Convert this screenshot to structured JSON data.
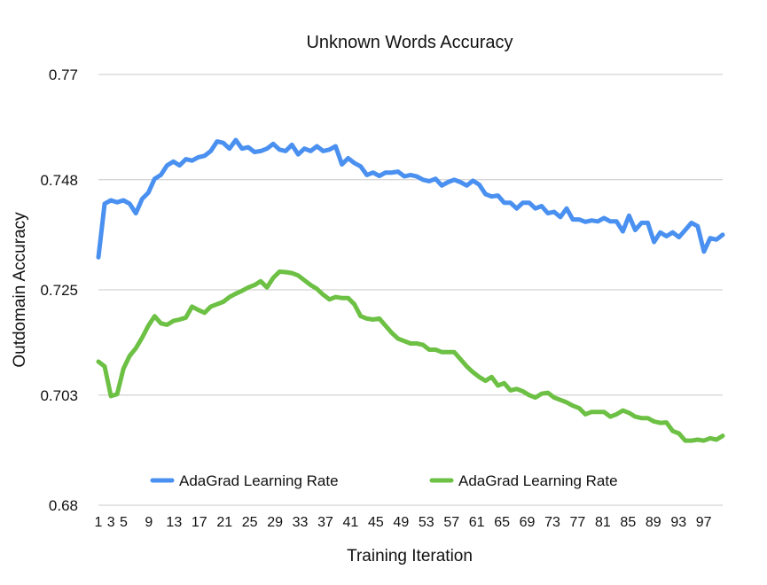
{
  "chart_data": {
    "type": "line",
    "title": "Unknown Words Accuracy",
    "xlabel": "Training Iteration",
    "ylabel": "Outdomain Accuracy",
    "yticks": [
      "0.68",
      "0.703",
      "0.725",
      "0.748",
      "0.77"
    ],
    "ylim": [
      0.68,
      0.77
    ],
    "xlim": [
      1,
      100
    ],
    "xticks": [
      "1",
      "3",
      "5",
      "9",
      "13",
      "17",
      "21",
      "25",
      "29",
      "33",
      "37",
      "41",
      "45",
      "49",
      "53",
      "57",
      "61",
      "65",
      "69",
      "73",
      "77",
      "81",
      "85",
      "89",
      "93",
      "97"
    ],
    "grid": true,
    "legend_position": "bottom",
    "series": [
      {
        "name": "AdaGrad Learning Rate",
        "color": "#4a90f0",
        "values": [
          0.7318,
          0.743,
          0.7437,
          0.7433,
          0.7437,
          0.743,
          0.741,
          0.744,
          0.7453,
          0.7482,
          0.749,
          0.751,
          0.7518,
          0.751,
          0.7523,
          0.752,
          0.7527,
          0.753,
          0.754,
          0.756,
          0.7557,
          0.7545,
          0.7563,
          0.7545,
          0.7548,
          0.7538,
          0.754,
          0.7545,
          0.7555,
          0.7543,
          0.754,
          0.7553,
          0.7533,
          0.7545,
          0.754,
          0.755,
          0.754,
          0.7543,
          0.755,
          0.7512,
          0.7525,
          0.7515,
          0.7508,
          0.749,
          0.7495,
          0.7488,
          0.7495,
          0.7495,
          0.7497,
          0.7487,
          0.749,
          0.7487,
          0.748,
          0.7477,
          0.7482,
          0.7468,
          0.7475,
          0.748,
          0.7475,
          0.7468,
          0.7478,
          0.747,
          0.745,
          0.7445,
          0.7447,
          0.7432,
          0.7432,
          0.742,
          0.7432,
          0.7432,
          0.742,
          0.7425,
          0.741,
          0.7413,
          0.7402,
          0.742,
          0.7397,
          0.7397,
          0.7392,
          0.7395,
          0.7393,
          0.74,
          0.7393,
          0.7393,
          0.7372,
          0.7405,
          0.7375,
          0.739,
          0.739,
          0.735,
          0.737,
          0.7362,
          0.737,
          0.736,
          0.7375,
          0.739,
          0.7383,
          0.733,
          0.7358,
          0.7355,
          0.7365
        ]
      },
      {
        "name": "AdaGrad Learning Rate",
        "color": "#6cc043",
        "values": [
          0.71,
          0.709,
          0.7028,
          0.7032,
          0.7085,
          0.7112,
          0.7128,
          0.715,
          0.7175,
          0.7195,
          0.718,
          0.7177,
          0.7185,
          0.7188,
          0.7192,
          0.7215,
          0.7208,
          0.7202,
          0.7215,
          0.722,
          0.7225,
          0.7235,
          0.7242,
          0.7248,
          0.7255,
          0.726,
          0.7268,
          0.7255,
          0.7275,
          0.7288,
          0.7287,
          0.7285,
          0.728,
          0.727,
          0.726,
          0.7252,
          0.724,
          0.723,
          0.7235,
          0.7233,
          0.7233,
          0.722,
          0.7195,
          0.719,
          0.7188,
          0.719,
          0.7175,
          0.716,
          0.7148,
          0.7143,
          0.7138,
          0.7138,
          0.7135,
          0.7125,
          0.7125,
          0.712,
          0.712,
          0.712,
          0.7105,
          0.709,
          0.7078,
          0.7068,
          0.706,
          0.7068,
          0.705,
          0.7055,
          0.704,
          0.7043,
          0.7038,
          0.703,
          0.7025,
          0.7033,
          0.7035,
          0.7025,
          0.702,
          0.7015,
          0.7008,
          0.7003,
          0.699,
          0.6995,
          0.6995,
          0.6995,
          0.6985,
          0.699,
          0.6998,
          0.6993,
          0.6985,
          0.6982,
          0.6982,
          0.6975,
          0.6972,
          0.6973,
          0.6955,
          0.695,
          0.6935,
          0.6935,
          0.6937,
          0.6935,
          0.694,
          0.6937,
          0.6945
        ]
      }
    ]
  }
}
